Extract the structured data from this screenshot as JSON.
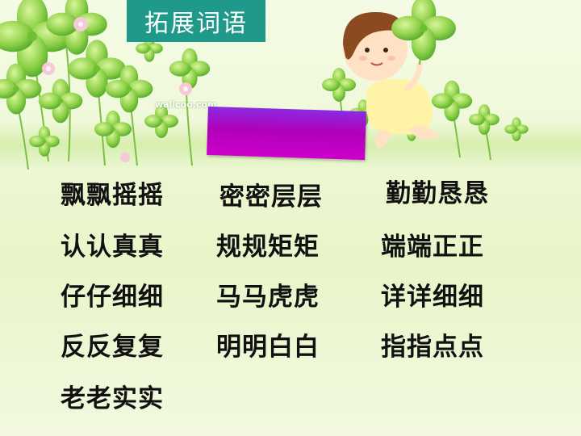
{
  "title": "拓展词语",
  "watermark": "wallcoo.com",
  "colors": {
    "title_bg": "#1f9a8a",
    "title_text": "#ffffff",
    "accent_purple": "#b000b8",
    "word_text": "#111111"
  },
  "words": [
    [
      "飘飘摇摇",
      "密密层层",
      "勤勤恳恳"
    ],
    [
      "认认真真",
      "规规矩矩",
      "端端正正"
    ],
    [
      "仔仔细细",
      "马马虎虎",
      "详详细细"
    ],
    [
      "反反复复",
      "明明白白",
      "指指点点"
    ],
    [
      "老老实实"
    ]
  ]
}
